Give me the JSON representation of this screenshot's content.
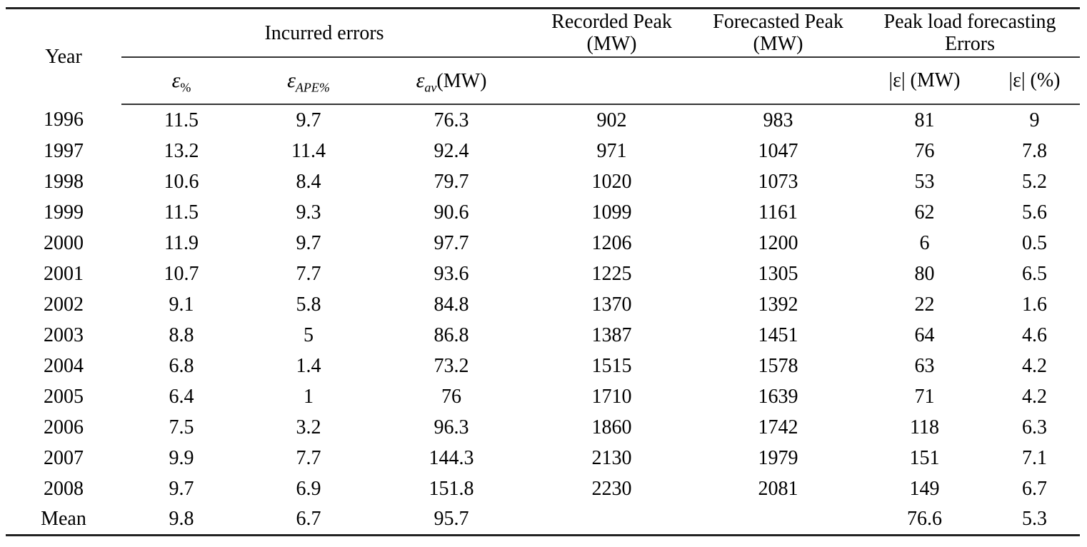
{
  "page": {
    "background": "#ffffff",
    "text_color": "#000000",
    "rule_color_thick": "#222222",
    "rule_color_thin": "#333333"
  },
  "table": {
    "header": {
      "year_label": "Year",
      "incurred_errors_label": "Incurred errors",
      "recorded_peak": {
        "line1": "Recorded Peak",
        "line2": "(MW)"
      },
      "forecasted_peak": {
        "line1": "Forecasted Peak",
        "line2": "(MW)"
      },
      "peak_load_errors": {
        "line1": "Peak load forecasting",
        "line2": "Errors"
      },
      "eps_pct": {
        "symbol": "ε",
        "subscript": "%"
      },
      "eps_ape": {
        "symbol": "ε",
        "subscript": "APE%"
      },
      "eps_av": {
        "symbol": "ε",
        "subscript": "av",
        "unit": "(MW)"
      },
      "abs_mw": "|ε| (MW)",
      "abs_pct": "|ε| (%)"
    },
    "columns": [
      "year",
      "eps_pct",
      "eps_ape",
      "eps_av",
      "recorded",
      "forecasted",
      "abs_mw",
      "abs_pct"
    ],
    "rows": [
      {
        "year": "1996",
        "eps_pct": "11.5",
        "eps_ape": "9.7",
        "eps_av": "76.3",
        "recorded": "902",
        "forecasted": "983",
        "abs_mw": "81",
        "abs_pct": "9"
      },
      {
        "year": "1997",
        "eps_pct": "13.2",
        "eps_ape": "11.4",
        "eps_av": "92.4",
        "recorded": "971",
        "forecasted": "1047",
        "abs_mw": "76",
        "abs_pct": "7.8"
      },
      {
        "year": "1998",
        "eps_pct": "10.6",
        "eps_ape": "8.4",
        "eps_av": "79.7",
        "recorded": "1020",
        "forecasted": "1073",
        "abs_mw": "53",
        "abs_pct": "5.2"
      },
      {
        "year": "1999",
        "eps_pct": "11.5",
        "eps_ape": "9.3",
        "eps_av": "90.6",
        "recorded": "1099",
        "forecasted": "1161",
        "abs_mw": "62",
        "abs_pct": "5.6"
      },
      {
        "year": "2000",
        "eps_pct": "11.9",
        "eps_ape": "9.7",
        "eps_av": "97.7",
        "recorded": "1206",
        "forecasted": "1200",
        "abs_mw": "6",
        "abs_pct": "0.5"
      },
      {
        "year": "2001",
        "eps_pct": "10.7",
        "eps_ape": "7.7",
        "eps_av": "93.6",
        "recorded": "1225",
        "forecasted": "1305",
        "abs_mw": "80",
        "abs_pct": "6.5"
      },
      {
        "year": "2002",
        "eps_pct": "9.1",
        "eps_ape": "5.8",
        "eps_av": "84.8",
        "recorded": "1370",
        "forecasted": "1392",
        "abs_mw": "22",
        "abs_pct": "1.6"
      },
      {
        "year": "2003",
        "eps_pct": "8.8",
        "eps_ape": "5",
        "eps_av": "86.8",
        "recorded": "1387",
        "forecasted": "1451",
        "abs_mw": "64",
        "abs_pct": "4.6"
      },
      {
        "year": "2004",
        "eps_pct": "6.8",
        "eps_ape": "1.4",
        "eps_av": "73.2",
        "recorded": "1515",
        "forecasted": "1578",
        "abs_mw": "63",
        "abs_pct": "4.2"
      },
      {
        "year": "2005",
        "eps_pct": "6.4",
        "eps_ape": "1",
        "eps_av": "76",
        "recorded": "1710",
        "forecasted": "1639",
        "abs_mw": "71",
        "abs_pct": "4.2"
      },
      {
        "year": "2006",
        "eps_pct": "7.5",
        "eps_ape": "3.2",
        "eps_av": "96.3",
        "recorded": "1860",
        "forecasted": "1742",
        "abs_mw": "118",
        "abs_pct": "6.3"
      },
      {
        "year": "2007",
        "eps_pct": "9.9",
        "eps_ape": "7.7",
        "eps_av": "144.3",
        "recorded": "2130",
        "forecasted": "1979",
        "abs_mw": "151",
        "abs_pct": "7.1"
      },
      {
        "year": "2008",
        "eps_pct": "9.7",
        "eps_ape": "6.9",
        "eps_av": "151.8",
        "recorded": "2230",
        "forecasted": "2081",
        "abs_mw": "149",
        "abs_pct": "6.7"
      },
      {
        "year": "Mean",
        "eps_pct": "9.8",
        "eps_ape": "6.7",
        "eps_av": "95.7",
        "recorded": "",
        "forecasted": "",
        "abs_mw": "76.6",
        "abs_pct": "5.3"
      }
    ]
  }
}
